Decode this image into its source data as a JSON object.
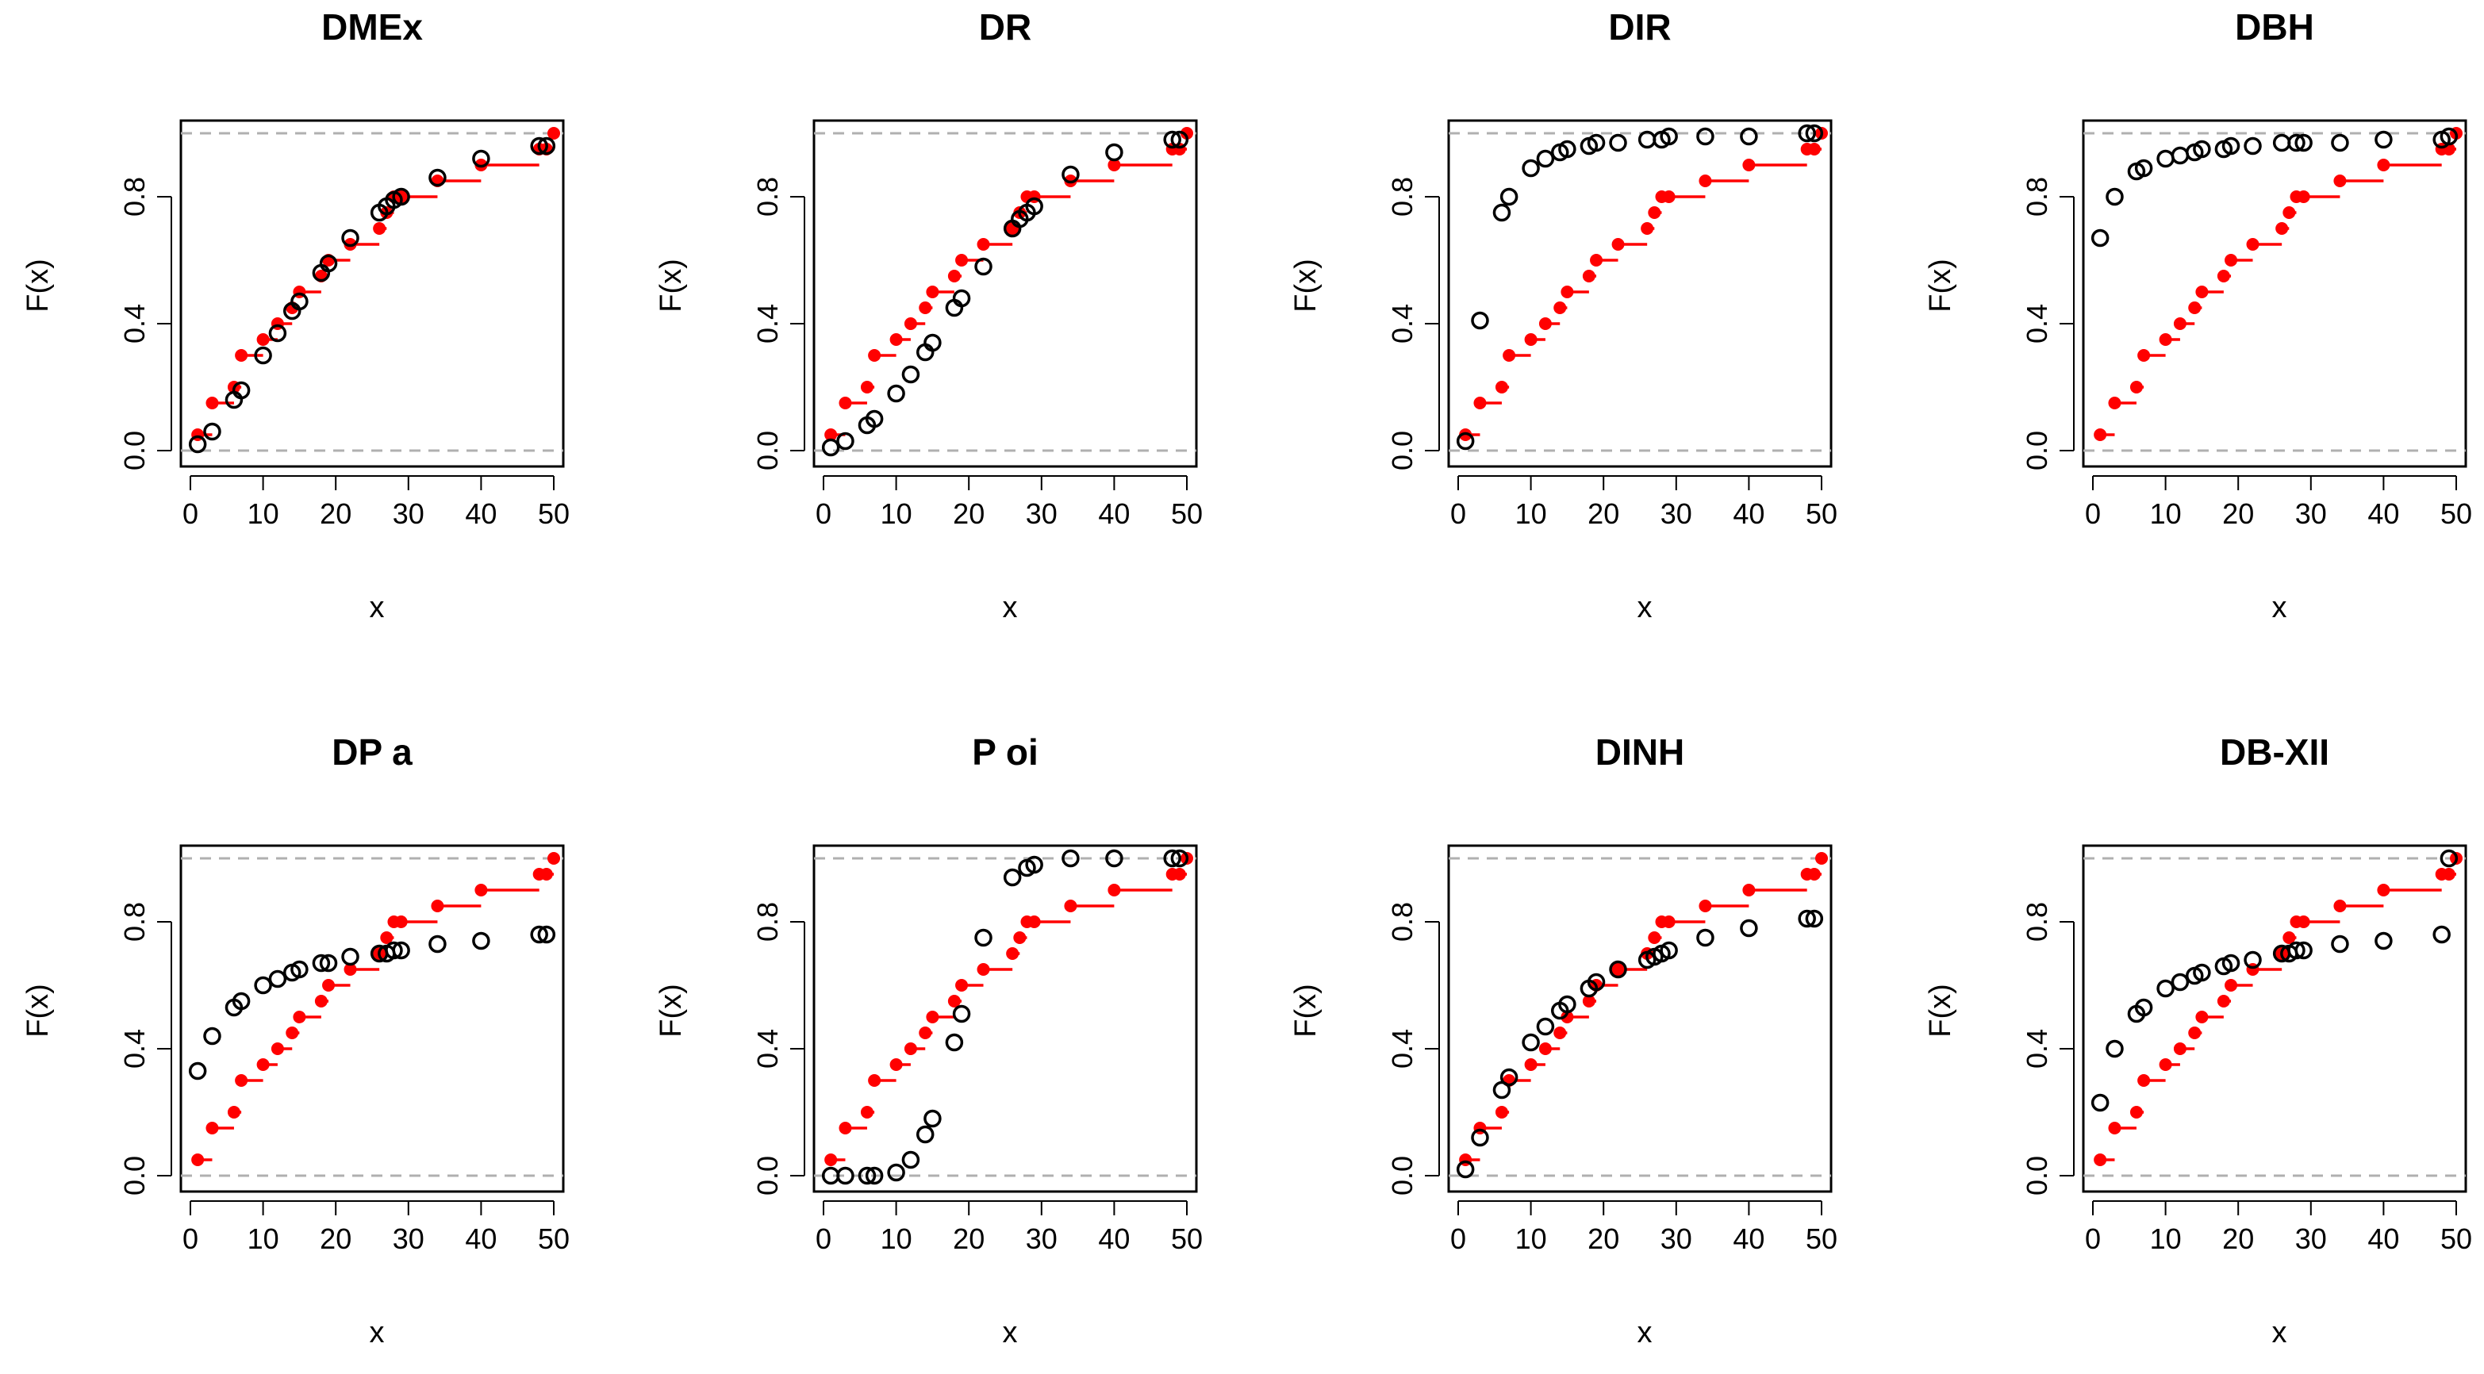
{
  "chart_data": [
    {
      "type": "scatter",
      "title": "DMEx",
      "xlabel": "x",
      "ylabel": "F(x)",
      "xlim": [
        0,
        50
      ],
      "ylim": [
        0,
        1
      ],
      "xticks": [
        "0",
        "10",
        "20",
        "30",
        "40",
        "50"
      ],
      "yticks": [
        "0.0",
        "0.4",
        "0.8"
      ],
      "reference_lines": [
        0,
        1
      ],
      "series": [
        {
          "name": "empirical",
          "style": "step",
          "color": "#ff0000",
          "x": [
            1,
            3,
            6,
            7,
            10,
            12,
            14,
            15,
            18,
            19,
            22,
            26,
            27,
            28,
            29,
            34,
            40,
            48,
            49,
            50
          ],
          "y": [
            0.05,
            0.15,
            0.2,
            0.3,
            0.35,
            0.4,
            0.45,
            0.5,
            0.55,
            0.6,
            0.65,
            0.7,
            0.75,
            0.8,
            0.8,
            0.85,
            0.9,
            0.95,
            0.95,
            1.0
          ]
        },
        {
          "name": "fitted",
          "style": "circle",
          "color": "#000000",
          "x": [
            1,
            3,
            6,
            7,
            10,
            12,
            14,
            15,
            18,
            19,
            22,
            26,
            27,
            28,
            29,
            34,
            40,
            48,
            49
          ],
          "y": [
            0.02,
            0.06,
            0.16,
            0.19,
            0.3,
            0.37,
            0.44,
            0.47,
            0.56,
            0.59,
            0.67,
            0.75,
            0.77,
            0.79,
            0.8,
            0.86,
            0.92,
            0.96,
            0.96
          ]
        }
      ]
    },
    {
      "type": "scatter",
      "title": "DR",
      "xlabel": "x",
      "ylabel": "F(x)",
      "xlim": [
        0,
        50
      ],
      "ylim": [
        0,
        1
      ],
      "xticks": [
        "0",
        "10",
        "20",
        "30",
        "40",
        "50"
      ],
      "yticks": [
        "0.0",
        "0.4",
        "0.8"
      ],
      "reference_lines": [
        0,
        1
      ],
      "series": [
        {
          "name": "empirical",
          "style": "step",
          "color": "#ff0000",
          "x": [
            1,
            3,
            6,
            7,
            10,
            12,
            14,
            15,
            18,
            19,
            22,
            26,
            27,
            28,
            29,
            34,
            40,
            48,
            49,
            50
          ],
          "y": [
            0.05,
            0.15,
            0.2,
            0.3,
            0.35,
            0.4,
            0.45,
            0.5,
            0.55,
            0.6,
            0.65,
            0.7,
            0.75,
            0.8,
            0.8,
            0.85,
            0.9,
            0.95,
            0.95,
            1.0
          ]
        },
        {
          "name": "fitted",
          "style": "circle",
          "color": "#000000",
          "x": [
            1,
            3,
            6,
            7,
            10,
            12,
            14,
            15,
            18,
            19,
            22,
            26,
            27,
            28,
            29,
            34,
            40,
            48,
            49
          ],
          "y": [
            0.01,
            0.03,
            0.08,
            0.1,
            0.18,
            0.24,
            0.31,
            0.34,
            0.45,
            0.48,
            0.58,
            0.7,
            0.73,
            0.75,
            0.77,
            0.87,
            0.94,
            0.98,
            0.98
          ]
        }
      ]
    },
    {
      "type": "scatter",
      "title": "DIR",
      "xlabel": "x",
      "ylabel": "F(x)",
      "xlim": [
        0,
        50
      ],
      "ylim": [
        0,
        1
      ],
      "xticks": [
        "0",
        "10",
        "20",
        "30",
        "40",
        "50"
      ],
      "yticks": [
        "0.0",
        "0.4",
        "0.8"
      ],
      "reference_lines": [
        0,
        1
      ],
      "series": [
        {
          "name": "empirical",
          "style": "step",
          "color": "#ff0000",
          "x": [
            1,
            3,
            6,
            7,
            10,
            12,
            14,
            15,
            18,
            19,
            22,
            26,
            27,
            28,
            29,
            34,
            40,
            48,
            49,
            50
          ],
          "y": [
            0.05,
            0.15,
            0.2,
            0.3,
            0.35,
            0.4,
            0.45,
            0.5,
            0.55,
            0.6,
            0.65,
            0.7,
            0.75,
            0.8,
            0.8,
            0.85,
            0.9,
            0.95,
            0.95,
            1.0
          ]
        },
        {
          "name": "fitted",
          "style": "circle",
          "color": "#000000",
          "x": [
            1,
            3,
            6,
            7,
            10,
            12,
            14,
            15,
            18,
            19,
            22,
            26,
            28,
            29,
            34,
            40,
            48,
            49
          ],
          "y": [
            0.03,
            0.41,
            0.75,
            0.8,
            0.89,
            0.92,
            0.94,
            0.95,
            0.96,
            0.97,
            0.97,
            0.98,
            0.98,
            0.99,
            0.99,
            0.99,
            1.0,
            1.0
          ]
        }
      ]
    },
    {
      "type": "scatter",
      "title": "DBH",
      "xlabel": "x",
      "ylabel": "F(x)",
      "xlim": [
        0,
        50
      ],
      "ylim": [
        0,
        1
      ],
      "xticks": [
        "0",
        "10",
        "20",
        "30",
        "40",
        "50"
      ],
      "yticks": [
        "0.0",
        "0.4",
        "0.8"
      ],
      "reference_lines": [
        0,
        1
      ],
      "series": [
        {
          "name": "empirical",
          "style": "step",
          "color": "#ff0000",
          "x": [
            1,
            3,
            6,
            7,
            10,
            12,
            14,
            15,
            18,
            19,
            22,
            26,
            27,
            28,
            29,
            34,
            40,
            48,
            49,
            50
          ],
          "y": [
            0.05,
            0.15,
            0.2,
            0.3,
            0.35,
            0.4,
            0.45,
            0.5,
            0.55,
            0.6,
            0.65,
            0.7,
            0.75,
            0.8,
            0.8,
            0.85,
            0.9,
            0.95,
            0.95,
            1.0
          ]
        },
        {
          "name": "fitted",
          "style": "circle",
          "color": "#000000",
          "x": [
            1,
            3,
            6,
            7,
            10,
            12,
            14,
            15,
            18,
            19,
            22,
            26,
            28,
            29,
            34,
            40,
            48,
            49
          ],
          "y": [
            0.67,
            0.8,
            0.88,
            0.89,
            0.92,
            0.93,
            0.94,
            0.95,
            0.95,
            0.96,
            0.96,
            0.97,
            0.97,
            0.97,
            0.97,
            0.98,
            0.98,
            0.99
          ]
        }
      ]
    },
    {
      "type": "scatter",
      "title": "DP  a",
      "xlabel": "x",
      "ylabel": "F(x)",
      "xlim": [
        0,
        50
      ],
      "ylim": [
        0,
        1
      ],
      "xticks": [
        "0",
        "10",
        "20",
        "30",
        "40",
        "50"
      ],
      "yticks": [
        "0.0",
        "0.4",
        "0.8"
      ],
      "reference_lines": [
        0,
        1
      ],
      "series": [
        {
          "name": "empirical",
          "style": "step",
          "color": "#ff0000",
          "x": [
            1,
            3,
            6,
            7,
            10,
            12,
            14,
            15,
            18,
            19,
            22,
            26,
            27,
            28,
            29,
            34,
            40,
            48,
            49,
            50
          ],
          "y": [
            0.05,
            0.15,
            0.2,
            0.3,
            0.35,
            0.4,
            0.45,
            0.5,
            0.55,
            0.6,
            0.65,
            0.7,
            0.75,
            0.8,
            0.8,
            0.85,
            0.9,
            0.95,
            0.95,
            1.0
          ]
        },
        {
          "name": "fitted",
          "style": "circle",
          "color": "#000000",
          "x": [
            1,
            3,
            6,
            7,
            10,
            12,
            14,
            15,
            18,
            19,
            22,
            26,
            27,
            28,
            29,
            34,
            40,
            48,
            49
          ],
          "y": [
            0.33,
            0.44,
            0.53,
            0.55,
            0.6,
            0.62,
            0.64,
            0.65,
            0.67,
            0.67,
            0.69,
            0.7,
            0.7,
            0.71,
            0.71,
            0.73,
            0.74,
            0.76,
            0.76
          ]
        }
      ]
    },
    {
      "type": "scatter",
      "title": "P oi",
      "xlabel": "x",
      "ylabel": "F(x)",
      "xlim": [
        0,
        50
      ],
      "ylim": [
        0,
        1
      ],
      "xticks": [
        "0",
        "10",
        "20",
        "30",
        "40",
        "50"
      ],
      "yticks": [
        "0.0",
        "0.4",
        "0.8"
      ],
      "reference_lines": [
        0,
        1
      ],
      "series": [
        {
          "name": "empirical",
          "style": "step",
          "color": "#ff0000",
          "x": [
            1,
            3,
            6,
            7,
            10,
            12,
            14,
            15,
            18,
            19,
            22,
            26,
            27,
            28,
            29,
            34,
            40,
            48,
            49,
            50
          ],
          "y": [
            0.05,
            0.15,
            0.2,
            0.3,
            0.35,
            0.4,
            0.45,
            0.5,
            0.55,
            0.6,
            0.65,
            0.7,
            0.75,
            0.8,
            0.8,
            0.85,
            0.9,
            0.95,
            0.95,
            1.0
          ]
        },
        {
          "name": "fitted",
          "style": "circle",
          "color": "#000000",
          "x": [
            1,
            3,
            6,
            7,
            10,
            12,
            14,
            15,
            18,
            19,
            22,
            26,
            28,
            29,
            34,
            40,
            48,
            49
          ],
          "y": [
            0.0,
            0.0,
            0.0,
            0.0,
            0.01,
            0.05,
            0.13,
            0.18,
            0.42,
            0.51,
            0.75,
            0.94,
            0.97,
            0.98,
            1.0,
            1.0,
            1.0,
            1.0
          ]
        }
      ]
    },
    {
      "type": "scatter",
      "title": "DINH",
      "xlabel": "x",
      "ylabel": "F(x)",
      "xlim": [
        0,
        50
      ],
      "ylim": [
        0,
        1
      ],
      "xticks": [
        "0",
        "10",
        "20",
        "30",
        "40",
        "50"
      ],
      "yticks": [
        "0.0",
        "0.4",
        "0.8"
      ],
      "reference_lines": [
        0,
        1
      ],
      "series": [
        {
          "name": "empirical",
          "style": "step",
          "color": "#ff0000",
          "x": [
            1,
            3,
            6,
            7,
            10,
            12,
            14,
            15,
            18,
            19,
            22,
            26,
            27,
            28,
            29,
            34,
            40,
            48,
            49,
            50
          ],
          "y": [
            0.05,
            0.15,
            0.2,
            0.3,
            0.35,
            0.4,
            0.45,
            0.5,
            0.55,
            0.6,
            0.65,
            0.7,
            0.75,
            0.8,
            0.8,
            0.85,
            0.9,
            0.95,
            0.95,
            1.0
          ]
        },
        {
          "name": "fitted",
          "style": "circle",
          "color": "#000000",
          "x": [
            1,
            3,
            6,
            7,
            10,
            12,
            14,
            15,
            18,
            19,
            22,
            26,
            27,
            28,
            29,
            34,
            40,
            48,
            49
          ],
          "y": [
            0.02,
            0.12,
            0.27,
            0.31,
            0.42,
            0.47,
            0.52,
            0.54,
            0.59,
            0.61,
            0.65,
            0.68,
            0.69,
            0.7,
            0.71,
            0.75,
            0.78,
            0.81,
            0.81
          ]
        }
      ]
    },
    {
      "type": "scatter",
      "title": "DB-XII",
      "xlabel": "x",
      "ylabel": "F(x)",
      "xlim": [
        0,
        50
      ],
      "ylim": [
        0,
        1
      ],
      "xticks": [
        "0",
        "10",
        "20",
        "30",
        "40",
        "50"
      ],
      "yticks": [
        "0.0",
        "0.4",
        "0.8"
      ],
      "reference_lines": [
        0,
        1
      ],
      "series": [
        {
          "name": "empirical",
          "style": "step",
          "color": "#ff0000",
          "x": [
            1,
            3,
            6,
            7,
            10,
            12,
            14,
            15,
            18,
            19,
            22,
            26,
            27,
            28,
            29,
            34,
            40,
            48,
            49,
            50
          ],
          "y": [
            0.05,
            0.15,
            0.2,
            0.3,
            0.35,
            0.4,
            0.45,
            0.5,
            0.55,
            0.6,
            0.65,
            0.7,
            0.75,
            0.8,
            0.8,
            0.85,
            0.9,
            0.95,
            0.95,
            1.0
          ]
        },
        {
          "name": "fitted",
          "style": "circle",
          "color": "#000000",
          "x": [
            1,
            3,
            6,
            7,
            10,
            12,
            14,
            15,
            18,
            19,
            22,
            26,
            27,
            28,
            29,
            34,
            40,
            48,
            49
          ],
          "y": [
            0.23,
            0.4,
            0.51,
            0.53,
            0.59,
            0.61,
            0.63,
            0.64,
            0.66,
            0.67,
            0.68,
            0.7,
            0.7,
            0.71,
            0.71,
            0.73,
            0.74,
            0.76,
            1.0
          ]
        }
      ]
    }
  ]
}
